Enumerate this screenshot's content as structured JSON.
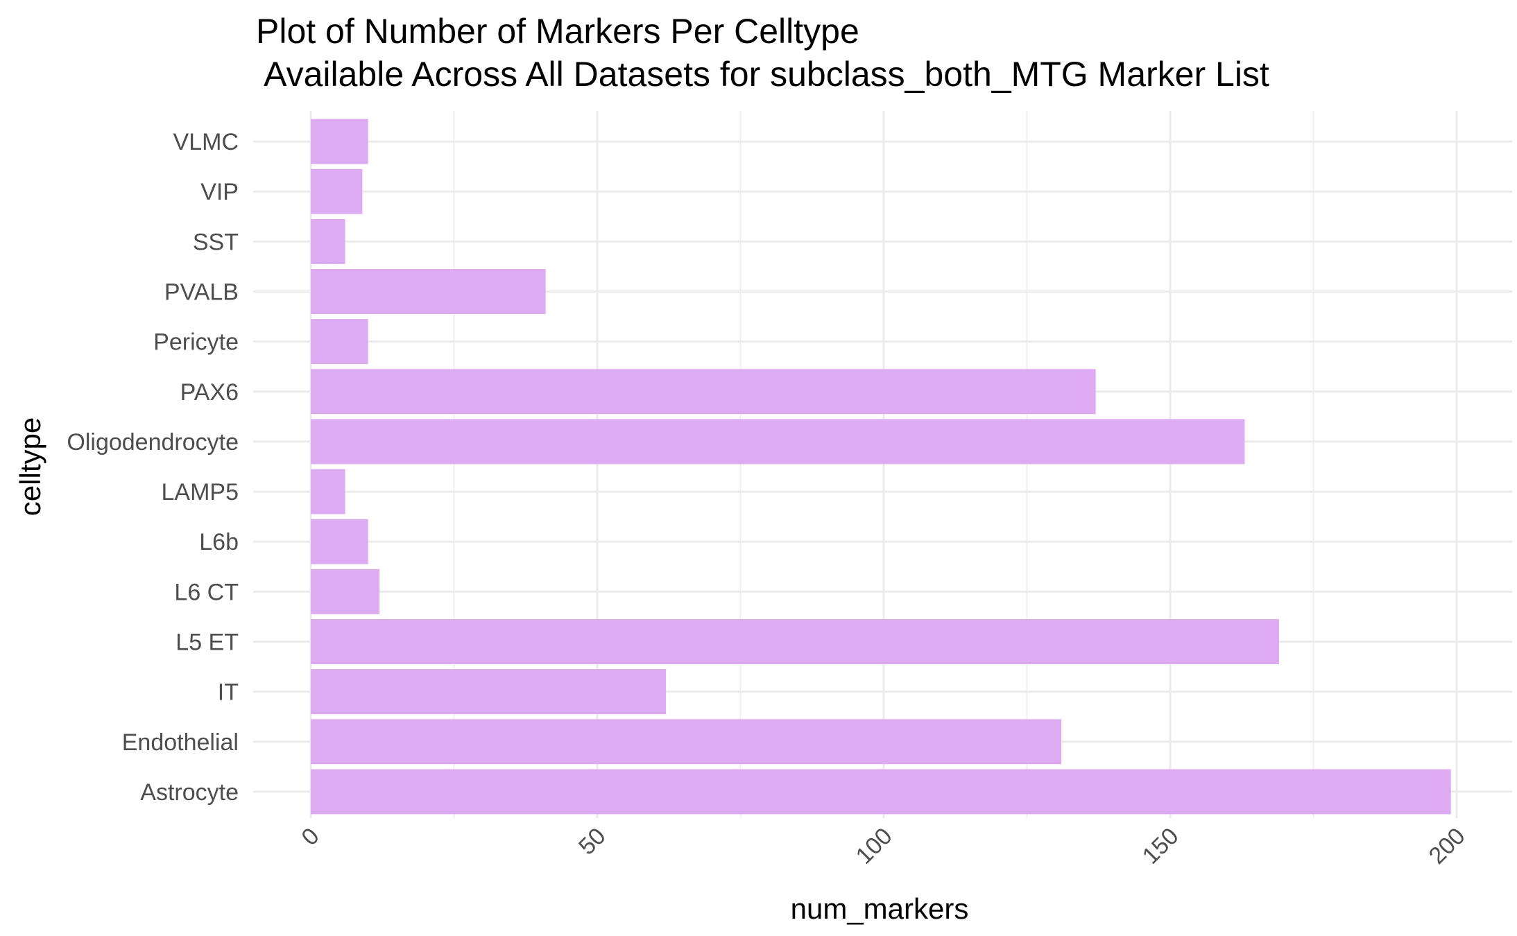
{
  "chart_data": {
    "type": "bar",
    "orientation": "horizontal",
    "title_line1": "Plot of Number of Markers Per Celltype",
    "title_line2": " Available Across All Datasets for subclass_both_MTG Marker List",
    "xlabel": "num_markers",
    "ylabel": "celltype",
    "categories": [
      "Astrocyte",
      "Endothelial",
      "IT",
      "L5 ET",
      "L6 CT",
      "L6b",
      "LAMP5",
      "Oligodendrocyte",
      "PAX6",
      "Pericyte",
      "PVALB",
      "SST",
      "VIP",
      "VLMC"
    ],
    "values": [
      199,
      131,
      62,
      169,
      12,
      10,
      6,
      163,
      137,
      10,
      41,
      6,
      9,
      10
    ],
    "xlim": [
      0,
      200
    ],
    "xticks": [
      0,
      50,
      100,
      150,
      200
    ],
    "xtick_labels": [
      "0",
      "50",
      "100",
      "150",
      "200"
    ],
    "bar_color": "#dfaaf4",
    "grid": true,
    "grid_color": "#ebebeb",
    "theme": "minimal"
  }
}
